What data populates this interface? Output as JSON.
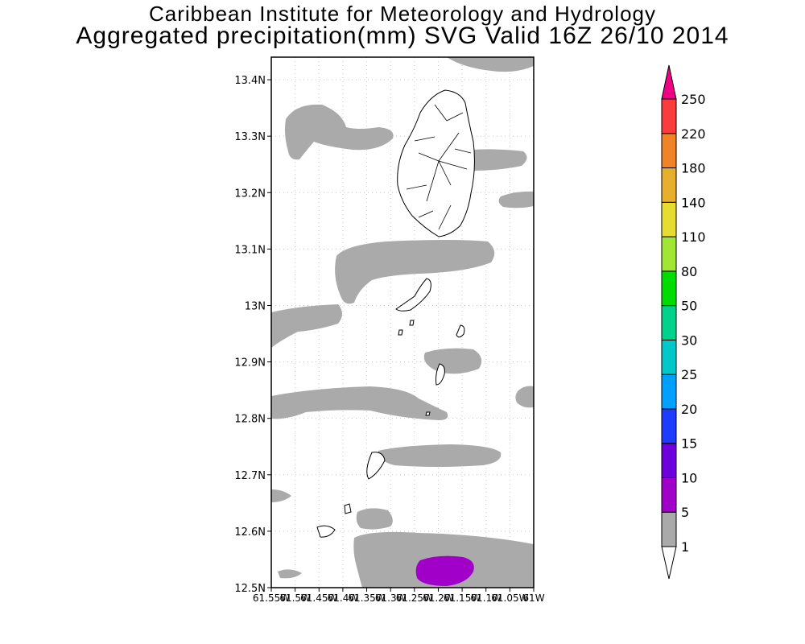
{
  "title": {
    "line1": "Caribbean Institute for Meteorology and Hydrology",
    "line2": "Aggregated precipitation(mm) SVG Valid 16Z 26/10 2014"
  },
  "map": {
    "lat_range": [
      12.5,
      13.44
    ],
    "lon_range": [
      -61.55,
      -61.0
    ],
    "lat_ticks": [
      "13.4N",
      "13.3N",
      "13.2N",
      "13.1N",
      "13N",
      "12.9N",
      "12.8N",
      "12.7N",
      "12.6N",
      "12.5N"
    ],
    "lon_ticks": [
      "61.55W",
      "61.5W",
      "61.45W",
      "61.4W",
      "61.35W",
      "61.3W",
      "61.25W",
      "61.2W",
      "61.15W",
      "61.1W",
      "61.05W",
      "61W"
    ],
    "grid": true,
    "precip_colors": {
      "1-5": "#aaaaaa",
      "5-10": "#a000c8"
    }
  },
  "colorbar": {
    "labels": [
      "1",
      "5",
      "10",
      "15",
      "20",
      "25",
      "30",
      "50",
      "80",
      "110",
      "140",
      "180",
      "220",
      "250"
    ],
    "colors": [
      "#ffffff",
      "#aaaaaa",
      "#a000c8",
      "#6e00dc",
      "#1e3cff",
      "#00a0ff",
      "#00c8c8",
      "#00d28c",
      "#00dc00",
      "#a0e632",
      "#e6dc32",
      "#e6af2d",
      "#f08228",
      "#fa3c3c",
      "#f00082"
    ]
  }
}
